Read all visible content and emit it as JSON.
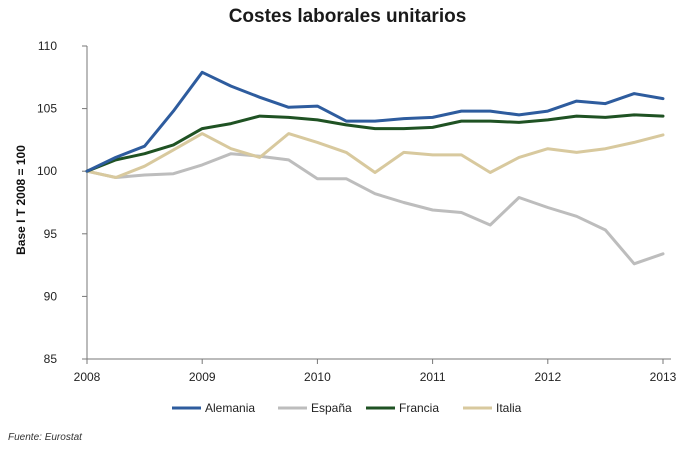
{
  "chart_data": {
    "type": "line",
    "title": "Costes laborales unitarios",
    "ylabel": "Base I T 2008 = 100",
    "xlabel": "",
    "x_tick_labels": [
      "2008",
      "2009",
      "2010",
      "2011",
      "2012",
      "2013"
    ],
    "y_ticks": [
      85,
      90,
      95,
      100,
      105,
      110
    ],
    "ylim": [
      85,
      110
    ],
    "xlim": [
      0,
      20
    ],
    "grid": false,
    "legend_position": "bottom",
    "series": [
      {
        "name": "Alemania",
        "color": "#2e5c9e",
        "values": [
          100,
          101.1,
          102,
          104.8,
          107.9,
          106.8,
          105.9,
          105.1,
          105.2,
          104,
          104,
          104.2,
          104.3,
          104.8,
          104.8,
          104.5,
          104.8,
          105.6,
          105.4,
          106.2,
          105.8
        ]
      },
      {
        "name": "España",
        "color": "#bdbdbd",
        "values": [
          100,
          99.5,
          99.7,
          99.8,
          100.5,
          101.4,
          101.2,
          100.9,
          99.4,
          99.4,
          98.2,
          97.5,
          96.9,
          96.7,
          95.7,
          97.9,
          97.1,
          96.4,
          95.3,
          92.6,
          93.4
        ]
      },
      {
        "name": "Francia",
        "color": "#1f5223",
        "values": [
          100,
          100.9,
          101.4,
          102.1,
          103.4,
          103.8,
          104.4,
          104.3,
          104.1,
          103.7,
          103.4,
          103.4,
          103.5,
          104,
          104,
          103.9,
          104.1,
          104.4,
          104.3,
          104.5,
          104.4
        ]
      },
      {
        "name": "Italia",
        "color": "#d8c99e",
        "values": [
          100,
          99.5,
          100.4,
          101.7,
          103,
          101.8,
          101.1,
          103,
          102.3,
          101.5,
          99.9,
          101.5,
          101.3,
          101.3,
          99.9,
          101.1,
          101.8,
          101.5,
          101.8,
          102.3,
          102.9
        ]
      }
    ]
  },
  "source": "Fuente: Eurostat"
}
